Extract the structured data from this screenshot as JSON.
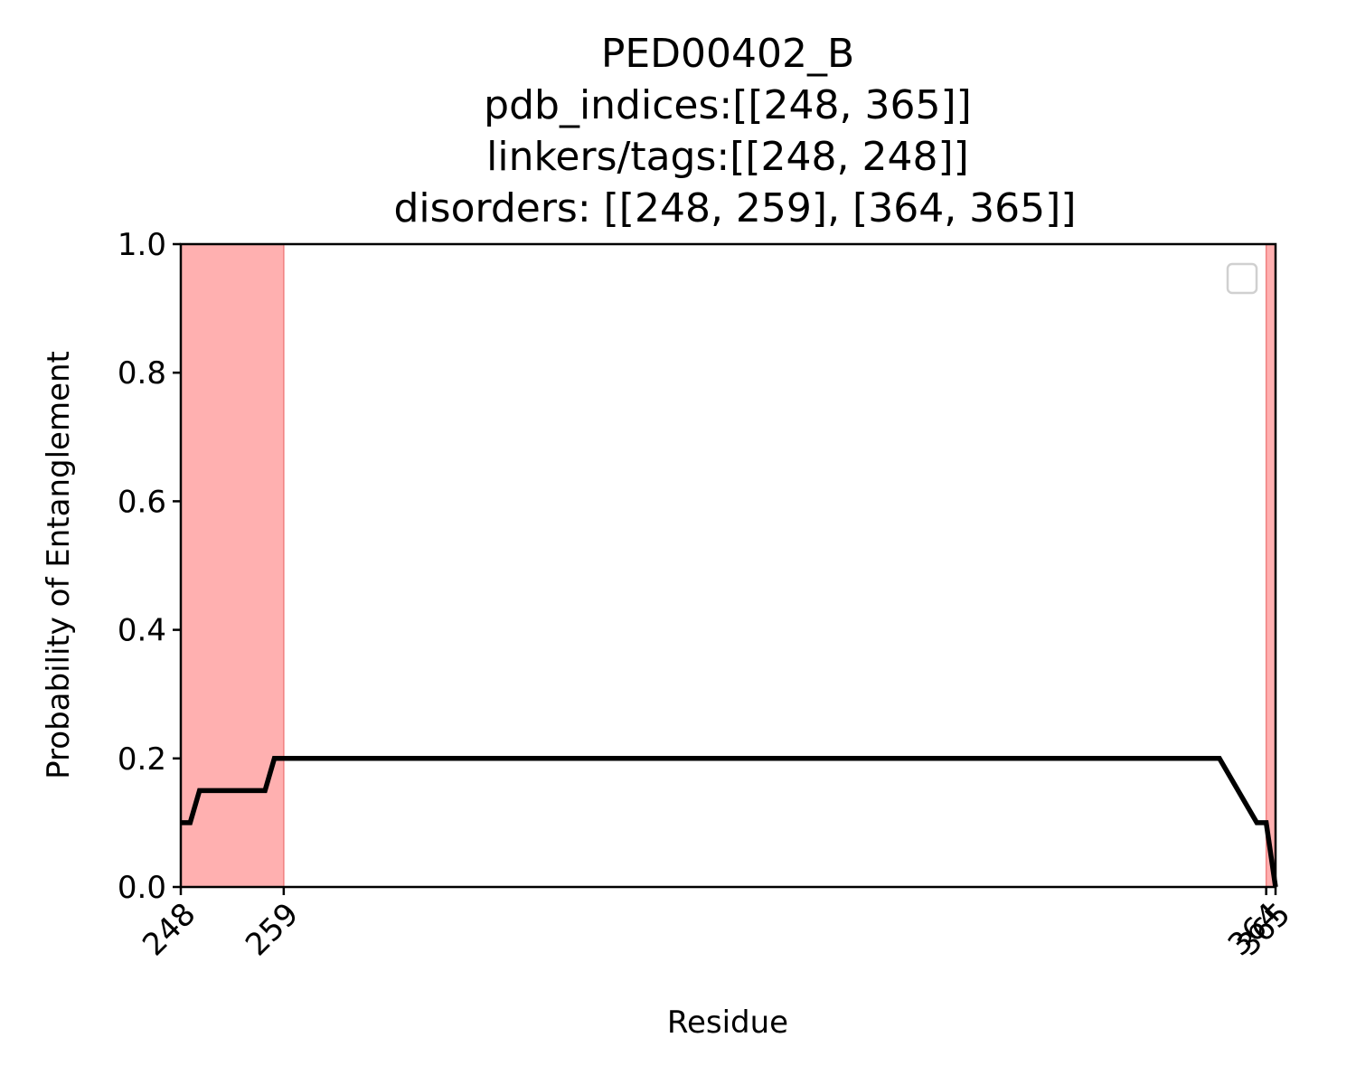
{
  "chart_data": {
    "type": "line",
    "title_lines": [
      "PED00402_B",
      "pdb_indices:[[248, 365]]",
      "linkers/tags:[[248, 248]]",
      "disorders: [[248, 259], [364, 365]]"
    ],
    "xlabel": "Residue",
    "ylabel": "Probability of Entanglement",
    "xlim": [
      248,
      365
    ],
    "ylim": [
      0,
      1
    ],
    "xticks": [
      248,
      259,
      364,
      365
    ],
    "xtick_labels": [
      "248",
      "259",
      "364",
      "365"
    ],
    "yticks": [
      0.0,
      0.2,
      0.4,
      0.6,
      0.8,
      1.0
    ],
    "ytick_labels": [
      "0.0",
      "0.2",
      "0.4",
      "0.6",
      "0.8",
      "1.0"
    ],
    "grid": false,
    "legend": {
      "placement": "upper right",
      "entries": []
    },
    "shaded_regions": [
      {
        "x0": 248,
        "x1": 259,
        "color": "#ffb0b0"
      },
      {
        "x0": 364,
        "x1": 365,
        "color": "#ffb0b0"
      }
    ],
    "series": [
      {
        "color": "#000000",
        "x": [
          248,
          249,
          250,
          257,
          258,
          359,
          359,
          363,
          364,
          365
        ],
        "y": [
          0.1,
          0.1,
          0.15,
          0.15,
          0.2,
          0.2,
          0.2,
          0.1,
          0.1,
          0.0
        ]
      }
    ]
  }
}
